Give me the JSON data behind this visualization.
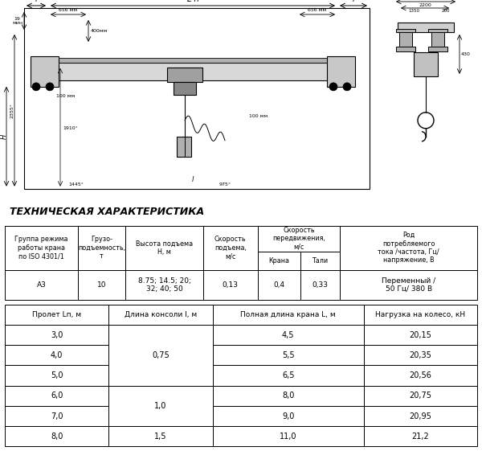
{
  "title": "ТЕХНИЧЕСКАЯ ХАРАКТЕРИСТИКА",
  "table1_col_headers": [
    "Группа режима\nработы крана\nпо ISO 4301/1",
    "Грузо-\nподъемность,\nт",
    "Высота подъема\nН, м",
    "Скорость\nподъема,\nм/с",
    "Скорость\nпередвижения,\nм/с",
    "Крана",
    "Тали",
    "Род\nпотребляемого\nтока /частота, Гц/\nнапряжение, В"
  ],
  "table1_data": [
    "А3",
    "10",
    "8.75; 14.5; 20;\n32; 40; 50",
    "0,13",
    "0,4",
    "0,33",
    "Переменный /\n50 Гц/ 380 В"
  ],
  "table2_headers": [
    "Пролет Lп, м",
    "Длина консоли l, м",
    "Полная длина крана L, м",
    "Нагрузка на колесо, кН"
  ],
  "table2_rows": [
    [
      "3,0",
      "4,5",
      "20,15"
    ],
    [
      "4,0",
      "5,5",
      "20,35"
    ],
    [
      "5,0",
      "6,5",
      "20,56"
    ],
    [
      "6,0",
      "8,0",
      "20,75"
    ],
    [
      "7,0",
      "9,0",
      "20,95"
    ],
    [
      "8,0",
      "11,0",
      "21,2"
    ]
  ],
  "table2_col1_merged": [
    {
      "value": "0,75",
      "start": 0,
      "end": 2
    },
    {
      "value": "1,0",
      "start": 3,
      "end": 4
    },
    {
      "value": "1,5",
      "start": 5,
      "end": 5
    }
  ],
  "bg_color": "#ffffff",
  "border_color": "#000000"
}
